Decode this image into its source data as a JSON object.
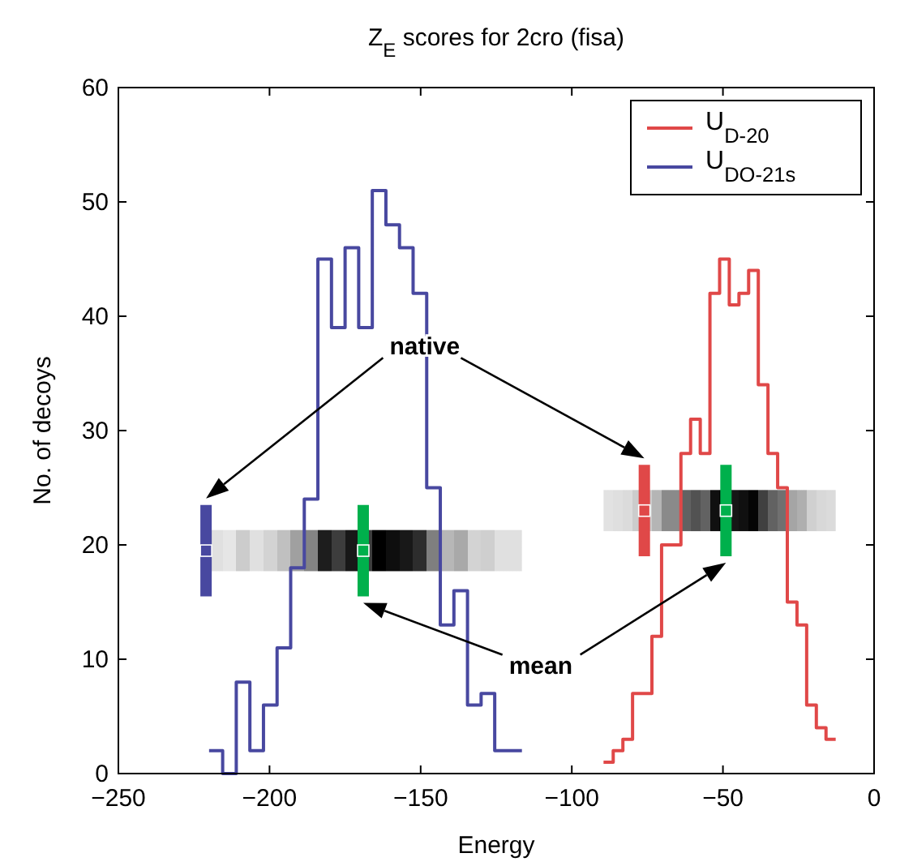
{
  "chart_data": {
    "type": "histogram",
    "title": "Z$_{E}$ scores for 2cro (fisa)",
    "xlabel": "Energy",
    "ylabel": "No. of decoys",
    "xlim": [
      -250,
      0
    ],
    "xticks": [
      -250,
      -200,
      -150,
      -100,
      -50,
      0
    ],
    "ylim": [
      0,
      60
    ],
    "yticks": [
      0,
      10,
      20,
      30,
      40,
      50,
      60
    ],
    "grid": false,
    "legend": "top right",
    "series": [
      {
        "name": "U$_{D-20}$",
        "color": "#e04848",
        "bins": [
          -89.5,
          -86.3,
          -83.1,
          -79.9,
          -76.7,
          -73.5,
          -70.3,
          -67.1,
          -63.9,
          -60.7,
          -57.5,
          -54.3,
          -51.1,
          -47.9,
          -44.7,
          -41.5,
          -38.3,
          -35.1,
          -31.9,
          -28.7,
          -25.5,
          -22.3,
          -19.1,
          -15.9,
          -12.7
        ],
        "values": [
          1,
          2,
          3,
          7,
          7,
          12,
          20,
          20,
          28,
          31,
          28,
          42,
          45,
          41,
          42,
          44,
          34,
          28,
          25,
          15,
          13,
          6,
          4,
          3
        ]
      },
      {
        "type": "scatter",
        "color": "#e04848",
        "marker": "square",
        "x": [
          -76
        ],
        "values": [
          23
        ],
        "errors": [
          4
        ]
      },
      {
        "type": "scatter",
        "color": "#00b04c",
        "marker": "square",
        "x": [
          -49
        ],
        "values": [
          23
        ],
        "errors": [
          4
        ]
      },
      {
        "name": "U$_{DO-21s}$",
        "color": "#4848a0",
        "bins": [
          -220,
          -215.5,
          -211,
          -206.5,
          -202,
          -197.5,
          -193,
          -188.5,
          -184,
          -179.5,
          -175,
          -170.5,
          -166,
          -161.5,
          -157,
          -152.5,
          -148,
          -143.5,
          -139,
          -134.5,
          -130,
          -125.5,
          -121,
          -116.5
        ],
        "values": [
          2,
          0,
          8,
          2,
          6,
          11,
          18,
          24,
          45,
          39,
          46,
          39,
          51,
          48,
          46,
          42,
          25,
          13,
          16,
          6,
          7,
          2,
          2
        ]
      },
      {
        "type": "scatter",
        "color": "#4848a0",
        "marker": "square",
        "x": [
          -221
        ],
        "values": [
          19.5
        ],
        "errors": [
          4
        ]
      },
      {
        "type": "scatter",
        "color": "#00b04c",
        "marker": "square",
        "x": [
          -169
        ],
        "values": [
          19.5
        ],
        "errors": [
          4
        ]
      }
    ],
    "annotations": [
      "native",
      "mean"
    ]
  }
}
